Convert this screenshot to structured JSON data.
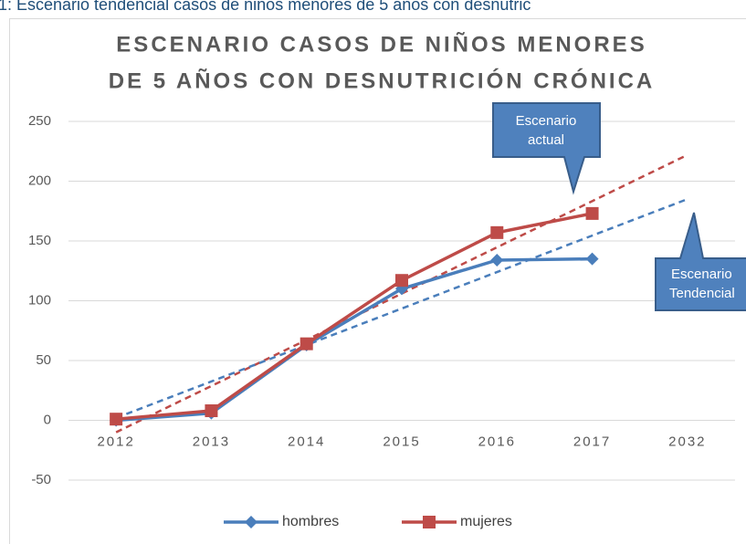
{
  "caption": "1: Escenario tendencial casos de niños menores de 5 años con desnutric",
  "chart_data": {
    "type": "line",
    "title": [
      "ESCENARIO CASOS DE NIÑOS MENORES",
      "DE 5 AÑOS CON DESNUTRICIÓN CRÓNICA"
    ],
    "categories": [
      "2012",
      "2013",
      "2014",
      "2015",
      "2016",
      "2017",
      "2032"
    ],
    "series": [
      {
        "name": "hombres",
        "color": "#4a7ebb",
        "marker": "diamond",
        "values": [
          0,
          6,
          63,
          110,
          134,
          135,
          null
        ]
      },
      {
        "name": "mujeres",
        "color": "#be4b48",
        "marker": "square",
        "values": [
          1,
          8,
          64,
          117,
          157,
          173,
          null
        ]
      }
    ],
    "trendlines": [
      {
        "color": "#be4b48",
        "values": [
          -10,
          28.7,
          67.3,
          106,
          144.7,
          183.3,
          222
        ]
      },
      {
        "color": "#4a7ebb",
        "values": [
          2,
          32.5,
          63,
          93.5,
          124,
          154.5,
          185
        ]
      }
    ],
    "annotations": [
      {
        "lines": [
          "Escenario",
          "actual"
        ]
      },
      {
        "lines": [
          "Escenario",
          "Tendencial"
        ]
      }
    ],
    "ylim": [
      -50,
      250
    ],
    "yticks": [
      -50,
      0,
      50,
      100,
      150,
      200,
      250
    ],
    "grid": true,
    "legend": "bottom"
  }
}
